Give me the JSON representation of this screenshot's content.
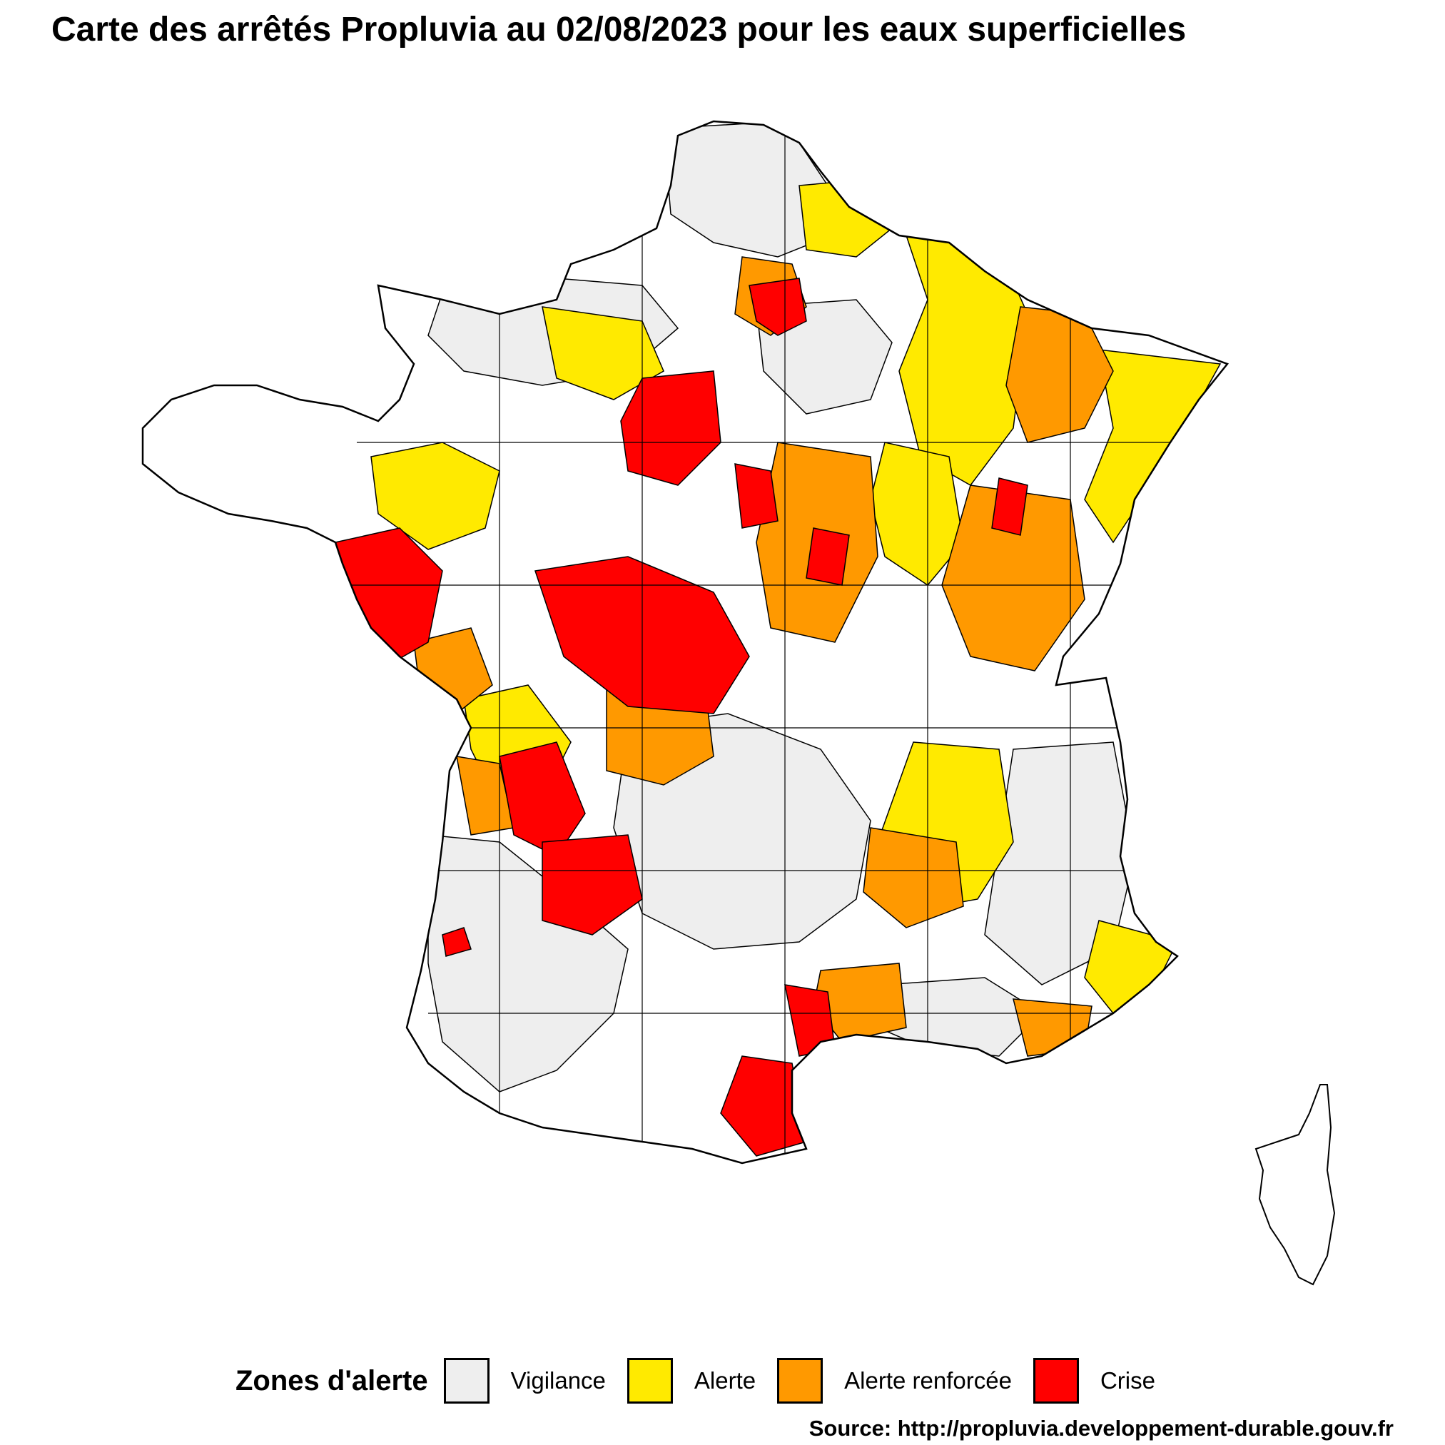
{
  "title": "Carte des arrêtés Propluvia au 02/08/2023 pour les eaux superficielles",
  "legend": {
    "title": "Zones d'alerte",
    "items": [
      {
        "label": "Vigilance",
        "color": "#EEEEEE"
      },
      {
        "label": "Alerte",
        "color": "#FFEA00"
      },
      {
        "label": "Alerte renforcée",
        "color": "#FF9900"
      },
      {
        "label": "Crise",
        "color": "#FF0000"
      }
    ]
  },
  "source": "Source: http://propluvia.developpement-durable.gouv.fr",
  "colors": {
    "no_restriction": "#FFFFFF",
    "outline": "#000000"
  }
}
